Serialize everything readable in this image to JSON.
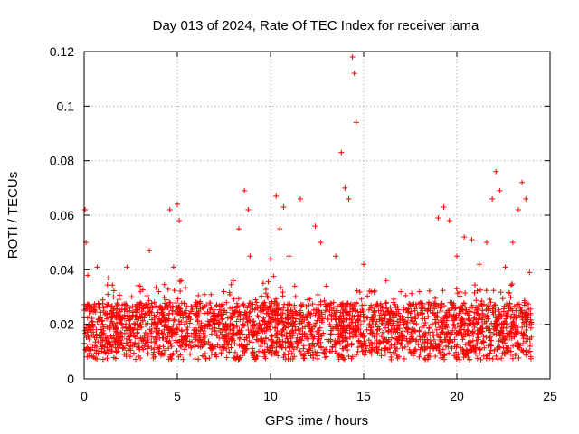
{
  "chart_data": {
    "type": "scatter",
    "title": "Day 013 of 2024, Rate Of TEC Index for receiver iama",
    "xlabel": "GPS time / hours",
    "ylabel": "ROTI / TECUs",
    "xlim": [
      0,
      25
    ],
    "ylim": [
      0,
      0.12
    ],
    "xticks": [
      0,
      5,
      10,
      15,
      20,
      25
    ],
    "xtick_labels": [
      "0",
      "5",
      "10",
      "15",
      "20",
      "25"
    ],
    "yticks": [
      0,
      0.02,
      0.04,
      0.06,
      0.08,
      0.1,
      0.12
    ],
    "ytick_labels": [
      "0",
      "0.02",
      "0.04",
      "0.06",
      "0.08",
      "0.1",
      "0.12"
    ],
    "grid": true,
    "marker": "plus",
    "series": [
      {
        "name": "ROTI",
        "color": "#ff0000",
        "x": [
          0.0,
          0.05,
          0.1,
          0.2,
          0.3,
          0.5,
          0.7,
          1.0,
          1.3,
          1.6,
          2.0,
          2.3,
          2.6,
          3.0,
          3.3,
          3.5,
          3.7,
          4.0,
          4.3,
          4.6,
          4.8,
          5.0,
          5.1,
          5.2,
          5.5,
          6.0,
          6.5,
          7.0,
          7.5,
          8.0,
          8.3,
          8.6,
          8.8,
          8.9,
          9.2,
          9.5,
          10.0,
          10.3,
          10.5,
          10.7,
          11.0,
          11.3,
          11.6,
          12.0,
          12.4,
          12.7,
          13.0,
          13.5,
          13.8,
          14.0,
          14.2,
          14.4,
          14.5,
          14.6,
          15.0,
          15.4,
          15.8,
          16.2,
          16.6,
          17.0,
          17.5,
          18.0,
          18.5,
          19.0,
          19.3,
          19.6,
          20.0,
          20.4,
          20.8,
          21.2,
          21.6,
          21.9,
          22.1,
          22.3,
          22.6,
          23.0,
          23.3,
          23.5,
          23.7,
          23.9
        ],
        "y": [
          0.013,
          0.062,
          0.05,
          0.038,
          0.018,
          0.016,
          0.041,
          0.02,
          0.037,
          0.015,
          0.022,
          0.041,
          0.018,
          0.034,
          0.013,
          0.047,
          0.02,
          0.032,
          0.018,
          0.062,
          0.041,
          0.064,
          0.058,
          0.036,
          0.018,
          0.028,
          0.016,
          0.024,
          0.032,
          0.036,
          0.055,
          0.069,
          0.062,
          0.045,
          0.029,
          0.025,
          0.044,
          0.067,
          0.055,
          0.063,
          0.045,
          0.034,
          0.066,
          0.029,
          0.056,
          0.05,
          0.034,
          0.045,
          0.083,
          0.07,
          0.066,
          0.118,
          0.112,
          0.094,
          0.042,
          0.032,
          0.025,
          0.036,
          0.028,
          0.032,
          0.024,
          0.032,
          0.028,
          0.059,
          0.063,
          0.058,
          0.045,
          0.052,
          0.051,
          0.042,
          0.05,
          0.066,
          0.076,
          0.069,
          0.041,
          0.05,
          0.062,
          0.072,
          0.066,
          0.039
        ]
      }
    ],
    "baseline": {
      "description": "dense band of samples",
      "low": 0.007,
      "high": 0.028
    }
  }
}
